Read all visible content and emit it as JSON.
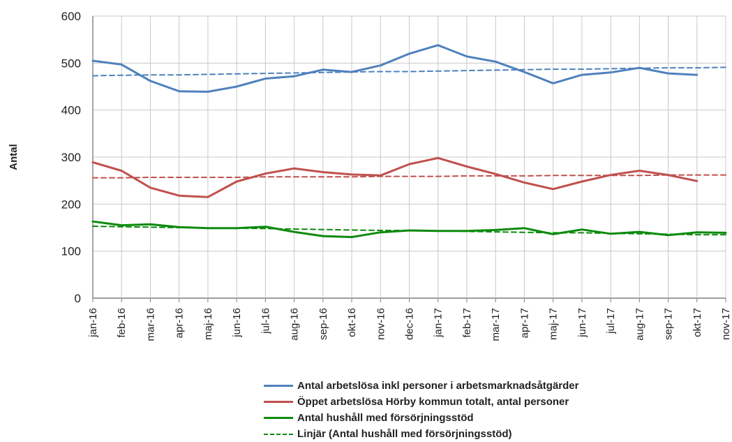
{
  "chart_data": {
    "type": "line",
    "ylabel": "Antal",
    "xlabel": "",
    "ylim": [
      0,
      600
    ],
    "yticks": [
      0,
      100,
      200,
      300,
      400,
      500,
      600
    ],
    "grid": true,
    "legend_position": "bottom",
    "categories": [
      "jan-16",
      "feb-16",
      "mar-16",
      "apr-16",
      "maj-16",
      "jun-16",
      "jul-16",
      "aug-16",
      "sep-16",
      "okt-16",
      "nov-16",
      "dec-16",
      "jan-17",
      "feb-17",
      "mar-17",
      "apr-17",
      "maj-17",
      "jun-17",
      "jul-17",
      "aug-17",
      "sep-17",
      "okt-17",
      "nov-17"
    ],
    "series": [
      {
        "name": "Antal arbetslösa inkl personer i arbetsmarknadsåtgärder",
        "color": "#4f81bd",
        "dash": false,
        "values": [
          505,
          497,
          462,
          440,
          439,
          450,
          467,
          472,
          486,
          481,
          495,
          520,
          538,
          514,
          503,
          481,
          457,
          475,
          480,
          490,
          478,
          475,
          null
        ]
      },
      {
        "name": "Öppet arbetslösa Hörby kommun totalt, antal personer",
        "color": "#c0504d",
        "dash": false,
        "values": [
          289,
          271,
          235,
          218,
          215,
          248,
          265,
          276,
          268,
          263,
          261,
          285,
          298,
          280,
          264,
          246,
          232,
          248,
          262,
          271,
          262,
          249,
          null
        ]
      },
      {
        "name": "Antal hushåll med försörjningsstöd",
        "color": "#0d8a0d",
        "dash": false,
        "values": [
          163,
          155,
          157,
          151,
          149,
          149,
          152,
          141,
          132,
          130,
          140,
          144,
          143,
          143,
          145,
          149,
          136,
          146,
          137,
          141,
          134,
          140,
          139
        ]
      },
      {
        "name": "Linjär (Antal hushåll med försörjningsstöd)",
        "color": "#0d8a0d",
        "dash": true,
        "values": [
          153,
          152,
          151,
          150,
          149,
          149,
          148,
          147,
          146,
          145,
          144,
          144,
          143,
          142,
          141,
          140,
          139,
          139,
          138,
          137,
          136,
          135,
          135
        ]
      },
      {
        "color": "#4f81bd",
        "dash": true,
        "legend": false,
        "values": [
          473,
          474,
          475,
          475,
          476,
          477,
          478,
          479,
          480,
          481,
          482,
          482,
          483,
          484,
          485,
          486,
          487,
          487,
          488,
          489,
          490,
          490,
          491
        ]
      },
      {
        "color": "#c0504d",
        "dash": true,
        "legend": false,
        "values": [
          256,
          256,
          257,
          257,
          257,
          257,
          258,
          258,
          258,
          258,
          259,
          259,
          259,
          260,
          260,
          260,
          261,
          261,
          261,
          261,
          262,
          262,
          262
        ]
      }
    ]
  },
  "legend": {
    "items": [
      {
        "label": "Antal arbetslösa inkl personer i arbetsmarknadsåtgärder",
        "color": "#4f81bd",
        "dash": false
      },
      {
        "label": "Öppet arbetslösa Hörby kommun totalt, antal personer",
        "color": "#c0504d",
        "dash": false
      },
      {
        "label": "Antal hushåll med försörjningsstöd",
        "color": "#0d8a0d",
        "dash": false
      },
      {
        "label": "Linjär (Antal hushåll med försörjningsstöd)",
        "color": "#0d8a0d",
        "dash": true
      }
    ]
  }
}
